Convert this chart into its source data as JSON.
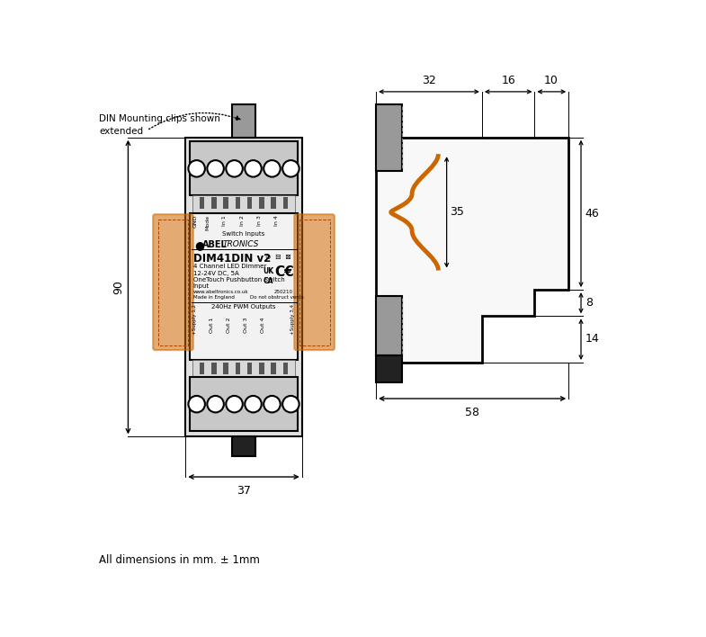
{
  "bg_color": "#ffffff",
  "line_color": "#000000",
  "gray_fill": "#b0b0b0",
  "light_gray": "#d8d8d8",
  "mid_gray": "#999999",
  "dark_gray": "#555555",
  "darkest": "#222222",
  "body_fill": "#e0e0e0",
  "label_fill": "#f2f2f2",
  "connector_fill": "#c8c8c8",
  "orange_color": "#cc6600",
  "annotation_text": "DIN Mounting clips shown\nextended",
  "note_text": "All dimensions in mm. ± 1mm",
  "dim_32": "32",
  "dim_16": "16",
  "dim_10": "10",
  "dim_35": "35",
  "dim_46": "46",
  "dim_8": "8",
  "dim_14": "14",
  "dim_37": "37",
  "dim_58": "58",
  "dim_90": "90"
}
